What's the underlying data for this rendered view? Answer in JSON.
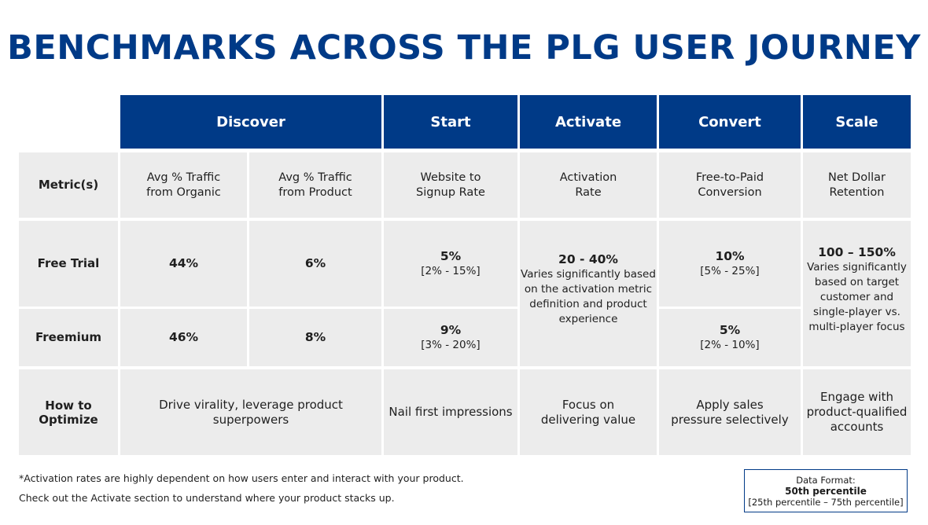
{
  "title": "BENCHMARKS ACROSS THE PLG USER JOURNEY",
  "headers": [
    "Discover",
    "Start",
    "Activate",
    "Convert",
    "Scale"
  ],
  "row_labels": {
    "metrics": "Metric(s)",
    "free_trial": "Free Trial",
    "freemium": "Freemium",
    "optimize_1": "How to",
    "optimize_2": "Optimize"
  },
  "metrics": [
    [
      "Avg % Traffic",
      "from Organic"
    ],
    [
      "Avg % Traffic",
      "from Product"
    ],
    [
      "Website to",
      "Signup Rate"
    ],
    [
      "Activation",
      "Rate"
    ],
    [
      "Free-to-Paid",
      "Conversion"
    ],
    [
      "Net Dollar",
      "Retention"
    ]
  ],
  "free_trial": {
    "organic": "44%",
    "product": "6%",
    "start_value": "5%",
    "start_range": "[2% - 15%]",
    "convert_value": "10%",
    "convert_range": "[5% - 25%]"
  },
  "freemium": {
    "organic": "46%",
    "product": "8%",
    "start_value": "9%",
    "start_range": "[3% - 20%]",
    "convert_value": "5%",
    "convert_range": "[2% - 10%]"
  },
  "activate": {
    "value": "20 - 40%",
    "note": [
      "Varies significantly based",
      "on the activation metric",
      "definition and product",
      "experience"
    ]
  },
  "scale": {
    "value": "100 – 150%",
    "note": [
      "Varies significantly",
      "based on target",
      "customer and",
      "single-player vs.",
      "multi-player focus"
    ]
  },
  "optimize": {
    "discover": "Drive virality, leverage product superpowers",
    "start": "Nail first impressions",
    "activate": [
      "Focus on",
      "delivering value"
    ],
    "convert": [
      "Apply sales",
      "pressure selectively"
    ],
    "scale": [
      "Engage with",
      "product-qualified",
      "accounts"
    ]
  },
  "footnotes": [
    "*Activation rates are highly dependent on how users enter and interact with your product.",
    "Check out the Activate section to understand where your product stacks up."
  ],
  "legend": {
    "label": "Data Format:",
    "main": "50th percentile",
    "range": "[25th percentile – 75th percentile]"
  },
  "colors": {
    "header_bg": "#003a87",
    "cell_bg": "#ececec",
    "title": "#003a87"
  }
}
